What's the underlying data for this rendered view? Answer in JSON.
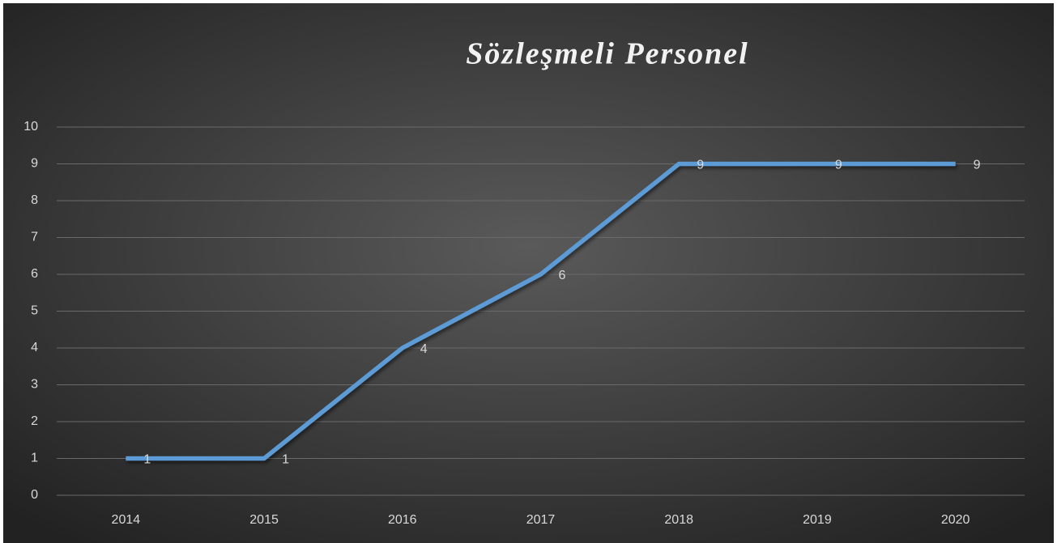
{
  "chart_data": {
    "type": "line",
    "title": "Sözleşmeli Personel",
    "categories": [
      "2014",
      "2015",
      "2016",
      "2017",
      "2018",
      "2019",
      "2020"
    ],
    "series": [
      {
        "color": "#5b9bd5",
        "values": [
          1,
          1,
          4,
          6,
          9,
          9,
          9
        ]
      }
    ],
    "ylim": [
      0,
      10
    ],
    "yticks": [
      0,
      1,
      2,
      3,
      4,
      5,
      6,
      7,
      8,
      9,
      10
    ],
    "grid": true,
    "data_labels": true
  }
}
